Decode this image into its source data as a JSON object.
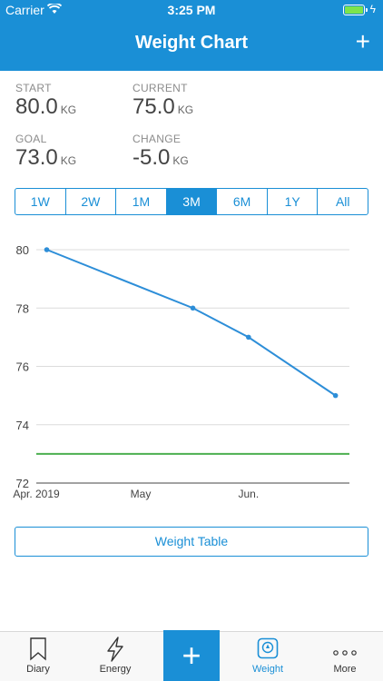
{
  "status": {
    "carrier": "Carrier",
    "time": "3:25 PM"
  },
  "nav": {
    "title": "Weight Chart",
    "add_label": "+"
  },
  "stats": {
    "start": {
      "label": "START",
      "value": "80.0",
      "unit": "KG"
    },
    "current": {
      "label": "CURRENT",
      "value": "75.0",
      "unit": "KG"
    },
    "goal": {
      "label": "GOAL",
      "value": "73.0",
      "unit": "KG"
    },
    "change": {
      "label": "CHANGE",
      "value": "-5.0",
      "unit": "KG"
    }
  },
  "ranges": [
    {
      "label": "1W",
      "active": false
    },
    {
      "label": "2W",
      "active": false
    },
    {
      "label": "1M",
      "active": false
    },
    {
      "label": "3M",
      "active": true
    },
    {
      "label": "6M",
      "active": false
    },
    {
      "label": "1Y",
      "active": false
    },
    {
      "label": "All",
      "active": false
    }
  ],
  "chart_data": {
    "type": "line",
    "title": "",
    "xlabel": "",
    "ylabel": "",
    "ylim": [
      72,
      80
    ],
    "yticks": [
      72,
      74,
      76,
      78,
      80
    ],
    "xlim": [
      "2019-04-01",
      "2019-06-30"
    ],
    "xticks": [
      {
        "date": "2019-04-01",
        "label": "Apr. 2019"
      },
      {
        "date": "2019-05-01",
        "label": "May"
      },
      {
        "date": "2019-06-01",
        "label": "Jun."
      }
    ],
    "series": [
      {
        "values": [
          {
            "x": "2019-04-04",
            "y": 80
          },
          {
            "x": "2019-05-16",
            "y": 78
          },
          {
            "x": "2019-06-01",
            "y": 77
          },
          {
            "x": "2019-06-26",
            "y": 75
          }
        ],
        "color": "#2d8ed8"
      }
    ],
    "goal_line": {
      "y": 73,
      "color": "#4caf50"
    },
    "grid": true
  },
  "weight_table_label": "Weight Table",
  "tabs": [
    {
      "label": "Diary",
      "icon": "bookmark-icon"
    },
    {
      "label": "Energy",
      "icon": "lightning-icon"
    },
    {
      "label": "Weight",
      "icon": "scale-icon"
    },
    {
      "label": "More",
      "icon": "more-dots-icon"
    }
  ],
  "center_button": "+",
  "colors": {
    "accent": "#1a8fd6",
    "goal": "#4caf50",
    "battery": "#7de44c"
  }
}
